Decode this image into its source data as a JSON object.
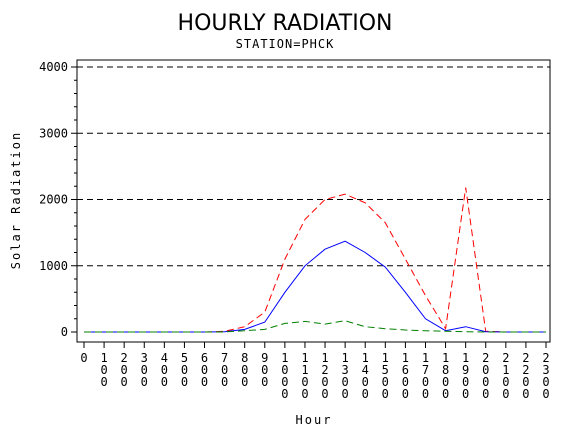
{
  "chart_data": {
    "type": "line",
    "title": "HOURLY RADIATION",
    "subtitle": "STATION=PHCK",
    "xlabel": "Hour",
    "ylabel": "Solar Radiation",
    "xlim": [
      0,
      2300
    ],
    "ylim": [
      0,
      4000
    ],
    "y_ticks": [
      0,
      1000,
      2000,
      3000,
      4000
    ],
    "x_ticks": [
      0,
      100,
      200,
      300,
      400,
      500,
      600,
      700,
      800,
      900,
      1000,
      1100,
      1200,
      1300,
      1400,
      1500,
      1600,
      1700,
      1800,
      1900,
      2000,
      2100,
      2200,
      2300
    ],
    "grid": "horizontal dashed at major y ticks",
    "x": [
      0,
      100,
      200,
      300,
      400,
      500,
      600,
      700,
      800,
      900,
      1000,
      1100,
      1200,
      1300,
      1400,
      1500,
      1600,
      1700,
      1800,
      1900,
      2000,
      2100,
      2200,
      2300
    ],
    "series": [
      {
        "color": "#ff0000",
        "dash": "dashed",
        "values": [
          0,
          0,
          0,
          0,
          0,
          0,
          0,
          10,
          80,
          300,
          1100,
          1700,
          2000,
          2080,
          1950,
          1650,
          1100,
          550,
          50,
          2180,
          10,
          0,
          0,
          0
        ]
      },
      {
        "color": "#0000ff",
        "dash": "solid",
        "values": [
          0,
          0,
          0,
          0,
          0,
          0,
          0,
          5,
          40,
          150,
          600,
          1000,
          1250,
          1370,
          1200,
          980,
          600,
          200,
          20,
          80,
          5,
          0,
          0,
          0
        ]
      },
      {
        "color": "#008000",
        "dash": "dashed",
        "values": [
          0,
          0,
          0,
          0,
          0,
          0,
          0,
          2,
          20,
          40,
          130,
          160,
          120,
          170,
          80,
          50,
          30,
          20,
          10,
          5,
          0,
          0,
          0,
          0
        ]
      }
    ]
  }
}
